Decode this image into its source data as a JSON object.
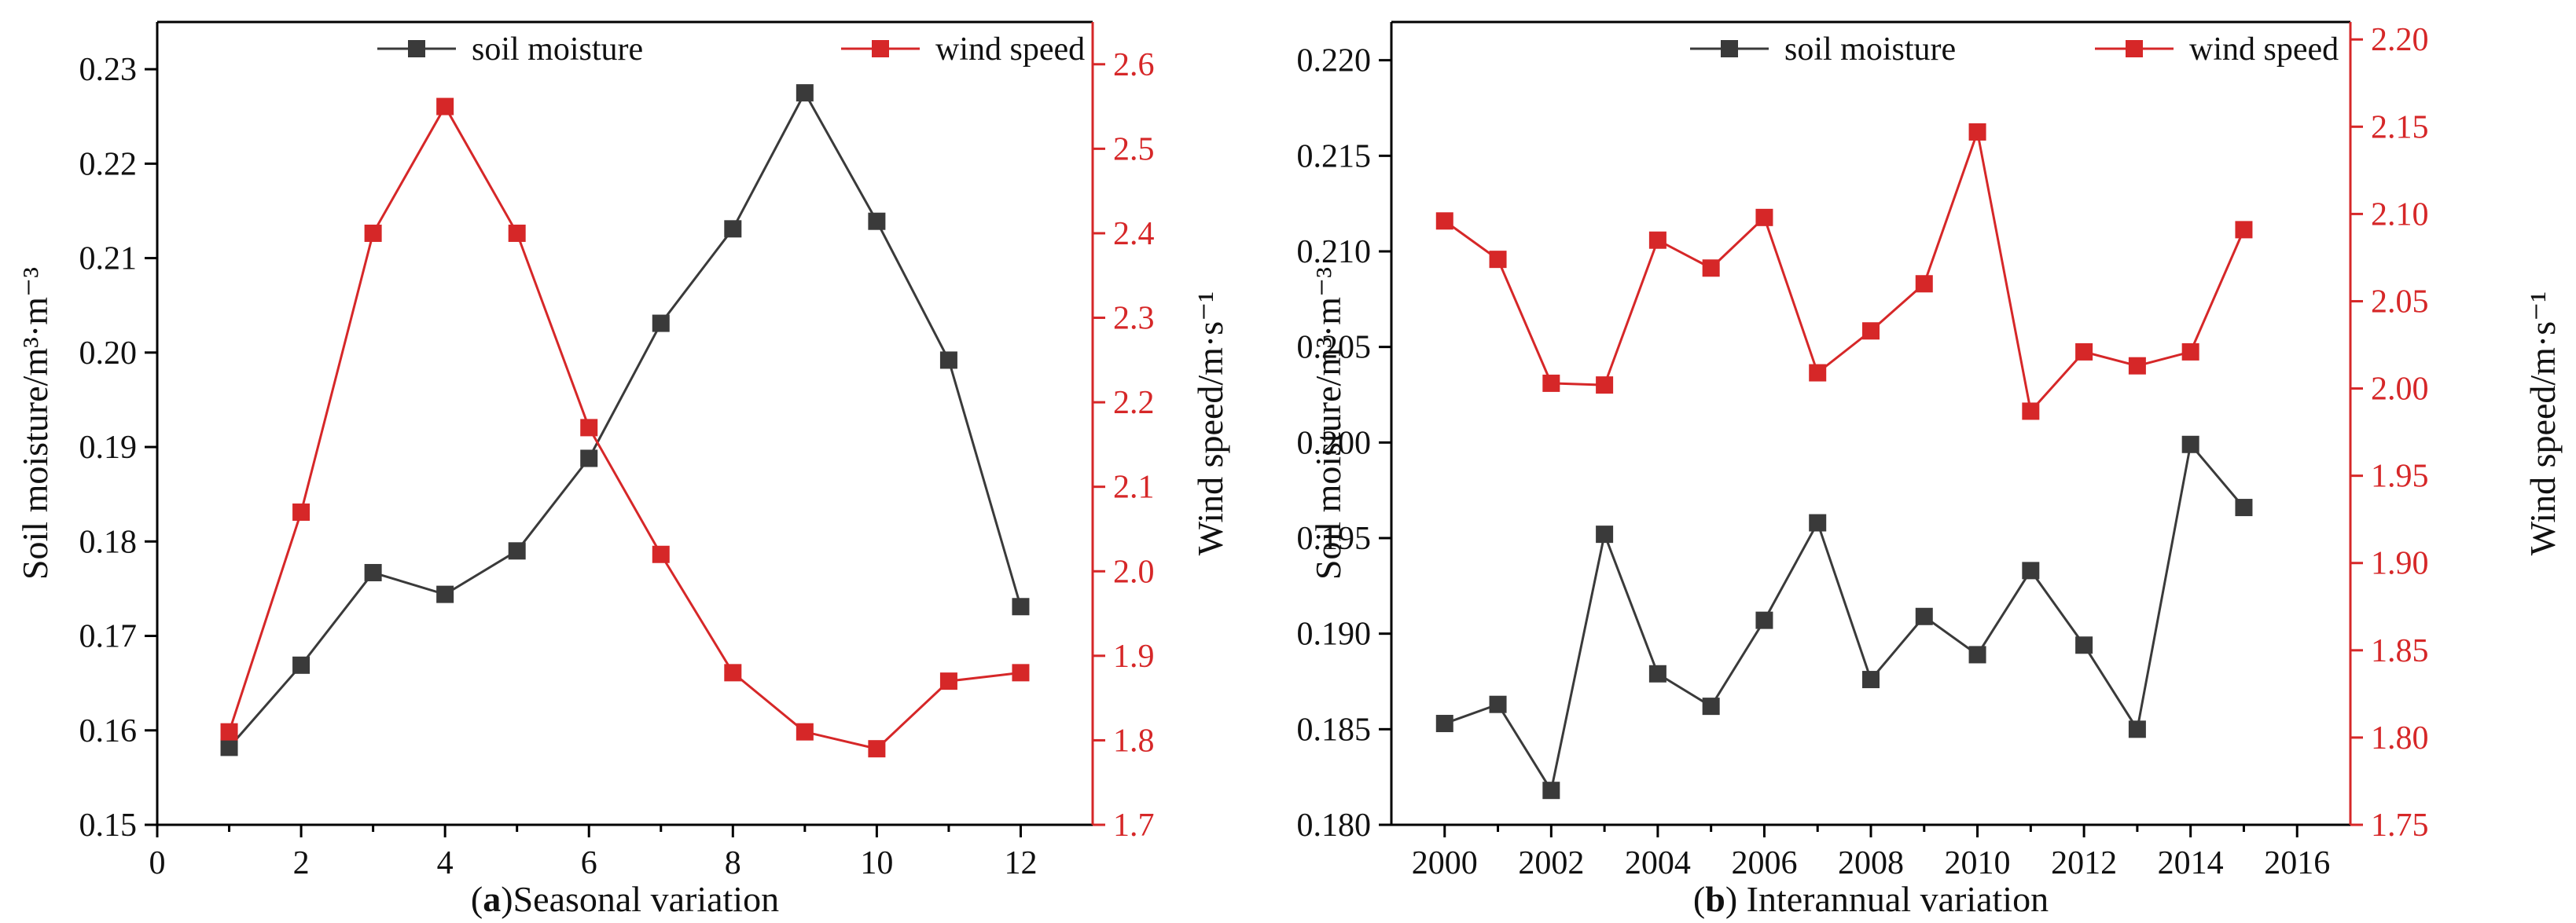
{
  "colors": {
    "soil": "#3a3a3a",
    "wind": "#d62728",
    "axis": "#000000"
  },
  "chart_data": [
    {
      "type": "line",
      "panel_label": "a",
      "caption": "Seasonal variation",
      "x": [
        1,
        2,
        3,
        4,
        5,
        6,
        7,
        8,
        9,
        10,
        11,
        12
      ],
      "xlim": [
        0,
        13
      ],
      "xticks": [
        0,
        2,
        4,
        6,
        8,
        10,
        12
      ],
      "series": [
        {
          "name": "soil moisture",
          "axis": "left",
          "values": [
            0.1582,
            0.1669,
            0.1767,
            0.1744,
            0.179,
            0.1888,
            0.2031,
            0.2131,
            0.2275,
            0.2139,
            0.1992,
            0.1731
          ]
        },
        {
          "name": "wind speed",
          "axis": "right",
          "values": [
            1.81,
            2.07,
            2.4,
            2.55,
            2.4,
            2.17,
            2.02,
            1.88,
            1.81,
            1.79,
            1.87,
            1.88
          ]
        }
      ],
      "ylim_left": [
        0.15,
        0.235
      ],
      "yticks_left": [
        "0.15",
        "0.16",
        "0.17",
        "0.18",
        "0.19",
        "0.20",
        "0.21",
        "0.22",
        "0.23"
      ],
      "ylim_right": [
        1.7,
        2.65
      ],
      "yticks_right": [
        "1.7",
        "1.8",
        "1.9",
        "2.0",
        "2.1",
        "2.2",
        "2.3",
        "2.4",
        "2.5",
        "2.6"
      ],
      "ylabel_left": "Soil moisture/m³·m⁻³",
      "ylabel_right": "Wind speed/m·s⁻¹",
      "legend": [
        "soil moisture",
        "wind speed"
      ]
    },
    {
      "type": "line",
      "panel_label": "b",
      "caption": " Interannual variation",
      "x": [
        2000,
        2001,
        2002,
        2003,
        2004,
        2005,
        2006,
        2007,
        2008,
        2009,
        2010,
        2011,
        2012,
        2013,
        2014,
        2015
      ],
      "xlim": [
        1999,
        2017
      ],
      "xticks": [
        2000,
        2002,
        2004,
        2006,
        2008,
        2010,
        2012,
        2014,
        2016
      ],
      "series": [
        {
          "name": "soil moisture",
          "axis": "left",
          "values": [
            0.1853,
            0.1863,
            0.1818,
            0.1952,
            0.1879,
            0.1862,
            0.1907,
            0.1958,
            0.1876,
            0.1909,
            0.1889,
            0.1933,
            0.1894,
            0.185,
            0.1999,
            0.1966
          ]
        },
        {
          "name": "wind speed",
          "axis": "right",
          "values": [
            2.096,
            2.074,
            2.003,
            2.002,
            2.085,
            2.069,
            2.098,
            2.009,
            2.033,
            2.06,
            2.147,
            1.987,
            2.021,
            2.013,
            2.021,
            2.091
          ]
        }
      ],
      "ylim_left": [
        0.18,
        0.222
      ],
      "yticks_left": [
        "0.180",
        "0.185",
        "0.190",
        "0.195",
        "0.200",
        "0.205",
        "0.210",
        "0.215",
        "0.220"
      ],
      "ylim_right": [
        1.75,
        2.21
      ],
      "yticks_right": [
        "1.75",
        "1.80",
        "1.85",
        "1.90",
        "1.95",
        "2.00",
        "2.05",
        "2.10",
        "2.15",
        "2.20"
      ],
      "ylabel_left": "Soil moisture/m³·m⁻³",
      "ylabel_right": "Wind speed/m·s⁻¹",
      "legend": [
        "soil moisture",
        "wind speed"
      ]
    }
  ]
}
